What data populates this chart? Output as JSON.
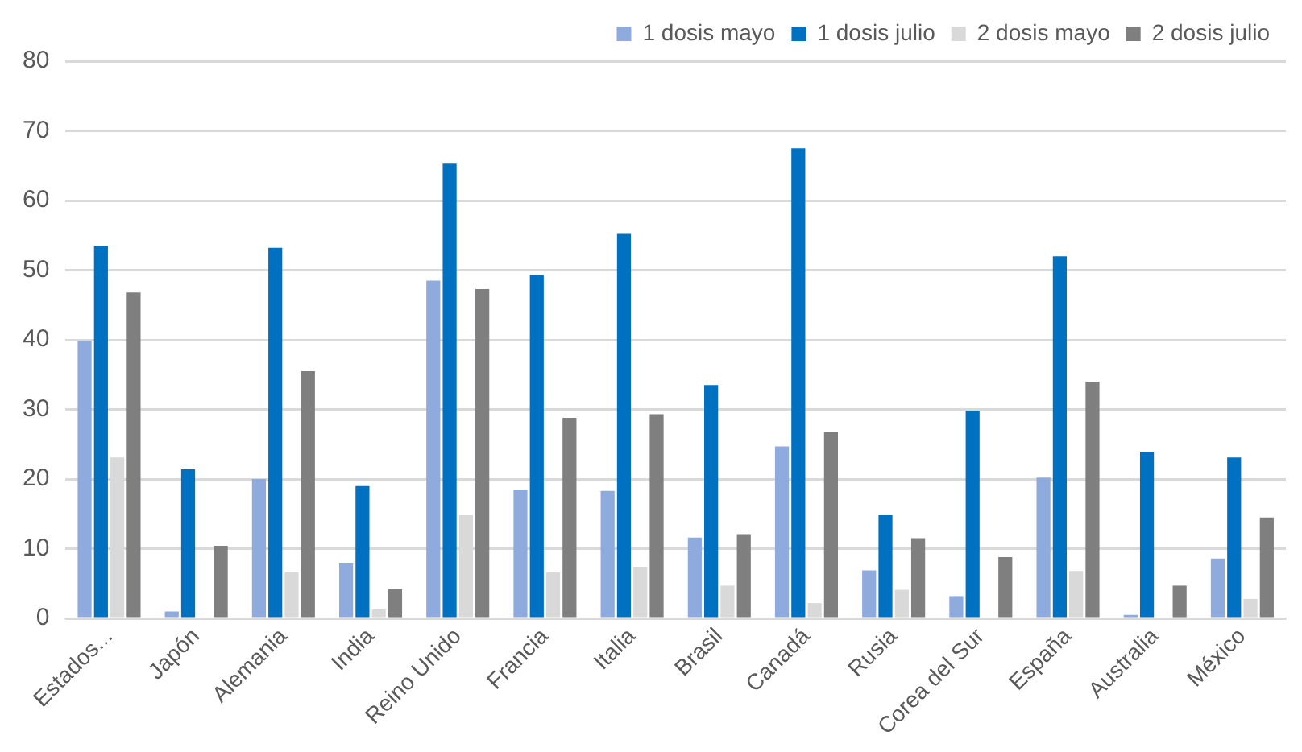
{
  "chart_data": {
    "type": "bar",
    "categories": [
      "Estados...",
      "Japón",
      "Alemania",
      "India",
      "Reino Unido",
      "Francia",
      "Italia",
      "Brasil",
      "Canadá",
      "Rusia",
      "Corea del Sur",
      "España",
      "Australia",
      "México"
    ],
    "series": [
      {
        "name": "1 dosis mayo",
        "color": "#8faadc",
        "values": [
          39.8,
          1.0,
          20.0,
          8.0,
          48.5,
          18.5,
          18.3,
          11.6,
          24.7,
          6.9,
          3.2,
          20.2,
          0.5,
          8.6
        ]
      },
      {
        "name": "1 dosis julio",
        "color": "#0070c0",
        "values": [
          53.5,
          21.4,
          53.2,
          19.0,
          65.3,
          49.3,
          55.2,
          33.5,
          67.5,
          14.8,
          29.8,
          52.0,
          23.9,
          23.1
        ]
      },
      {
        "name": "2 dosis mayo",
        "color": "#d9d9d9",
        "values": [
          23.1,
          0,
          6.6,
          1.3,
          14.8,
          6.6,
          7.4,
          4.7,
          2.2,
          4.1,
          0,
          6.8,
          0,
          2.8
        ]
      },
      {
        "name": "2 dosis julio",
        "color": "#7f7f7f",
        "values": [
          46.8,
          10.4,
          35.5,
          4.2,
          47.3,
          28.8,
          29.3,
          12.1,
          26.8,
          11.5,
          8.8,
          34.0,
          4.7,
          14.5
        ]
      }
    ],
    "ylim": [
      0,
      80
    ],
    "yticks": [
      0,
      10,
      20,
      30,
      40,
      50,
      60,
      70,
      80
    ],
    "grid": "y",
    "legend": "top right"
  }
}
